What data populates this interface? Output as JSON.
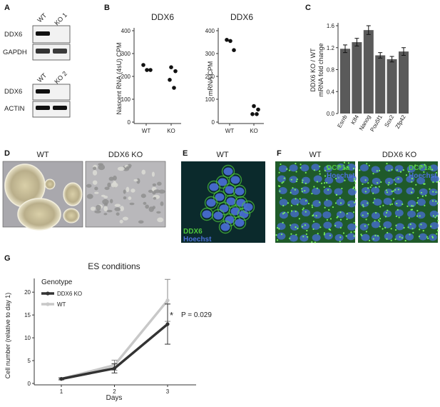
{
  "panel_labels": {
    "A": "A",
    "B": "B",
    "C": "C",
    "D": "D",
    "E": "E",
    "F": "F",
    "G": "G"
  },
  "panelA": {
    "blot1": {
      "lanes": [
        "WT",
        "KO 1"
      ],
      "rows": [
        "DDX6",
        "GAPDH"
      ]
    },
    "blot2": {
      "lanes": [
        "WT",
        "KO 2"
      ],
      "rows": [
        "DDX6",
        "ACTIN"
      ]
    }
  },
  "panelB": {
    "left": {
      "title": "DDX6",
      "ylabel": "Nascent RNA (4sU) CPM",
      "categories": [
        "WT",
        "KO"
      ],
      "ticks": [
        "0",
        "100",
        "200",
        "300",
        "400"
      ]
    },
    "right": {
      "title": "DDX6",
      "ylabel": "mRNA CPM",
      "categories": [
        "WT",
        "KO"
      ],
      "ticks": [
        "0",
        "100",
        "200",
        "300",
        "400"
      ]
    }
  },
  "panelC": {
    "ylabel_line1": "DDX6 KO / WT",
    "ylabel_line2": "mRNA fold change",
    "ticks": [
      "0.0",
      "0.4",
      "0.8",
      "1.2",
      "1.6"
    ]
  },
  "panelD": {
    "labels": [
      "WT",
      "DDX6 KO"
    ]
  },
  "panelE": {
    "title": "WT",
    "stain1": "DDX6",
    "stain2": "Hoechst"
  },
  "panelF": {
    "titles": [
      "WT",
      "DDX6 KO"
    ],
    "stain1": "DCP1a",
    "stain2": "Hoechst"
  },
  "panelG": {
    "title": "ES conditions",
    "legend_title": "Genotype",
    "xlabel": "Days",
    "ylabel": "Cell number (relative to day 1)",
    "xticks": [
      "1",
      "2",
      "3"
    ],
    "yticks": [
      "0",
      "5",
      "10",
      "15",
      "20"
    ],
    "annotation_star": "*",
    "annotation_p": "P = 0.029"
  },
  "colors": {
    "ko_line": "#333333",
    "wt_line": "#c8c8c8",
    "bar": "#5a5a5a",
    "hoechst": "#4a6fd8",
    "green_stain": "#4ec83c"
  },
  "chart_data": [
    {
      "type": "scatter",
      "title": "DDX6",
      "ylabel": "Nascent RNA (4sU) CPM",
      "ylim": [
        0,
        400
      ],
      "series": [
        {
          "x": "WT",
          "values": [
            250,
            228,
            228
          ]
        },
        {
          "x": "KO",
          "values": [
            240,
            223,
            185,
            150
          ]
        }
      ]
    },
    {
      "type": "scatter",
      "title": "DDX6",
      "ylabel": "mRNA CPM",
      "ylim": [
        0,
        400
      ],
      "series": [
        {
          "x": "WT",
          "values": [
            360,
            355,
            315
          ]
        },
        {
          "x": "KO",
          "values": [
            70,
            55,
            35,
            35
          ]
        }
      ]
    },
    {
      "type": "bar",
      "ylabel": "DDX6 KO / WT mRNA fold change",
      "ylim": [
        0,
        1.6
      ],
      "categories": [
        "Esrrb",
        "Klf4",
        "Nanog",
        "Pou5f1",
        "Sox2",
        "Zfp42"
      ],
      "values": [
        1.18,
        1.3,
        1.52,
        1.06,
        0.99,
        1.13
      ],
      "errors": [
        0.07,
        0.07,
        0.08,
        0.05,
        0.05,
        0.07
      ]
    },
    {
      "type": "line",
      "title": "ES conditions",
      "xlabel": "Days",
      "ylabel": "Cell number (relative to day 1)",
      "x": [
        1,
        2,
        3
      ],
      "ylim": [
        0,
        23
      ],
      "series": [
        {
          "name": "DDX6 KO",
          "values": [
            1,
            3.3,
            13
          ],
          "errors": [
            0.2,
            1.0,
            4.4
          ]
        },
        {
          "name": "WT",
          "values": [
            1,
            4.0,
            18.2
          ],
          "errors": [
            0.2,
            1.1,
            4.6
          ]
        }
      ]
    }
  ]
}
